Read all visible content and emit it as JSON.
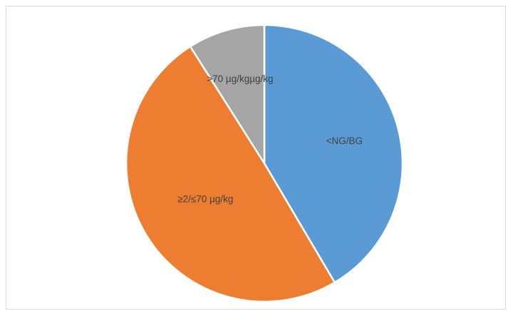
{
  "chart_data": {
    "type": "pie",
    "title": "",
    "slices": [
      {
        "label": "<NG/BG",
        "value": 41.5,
        "color": "#5b9bd5"
      },
      {
        "label": "≥2/≤70 µg/kg",
        "value": 49.5,
        "color": "#ed7d31"
      },
      {
        "label": ">70 µg/kgµg/kg",
        "value": 9.0,
        "color": "#a5a5a5"
      }
    ],
    "start_angle": "12 o'clock",
    "direction": "clockwise",
    "slice_border_color": "#ffffff",
    "legend": "none"
  }
}
